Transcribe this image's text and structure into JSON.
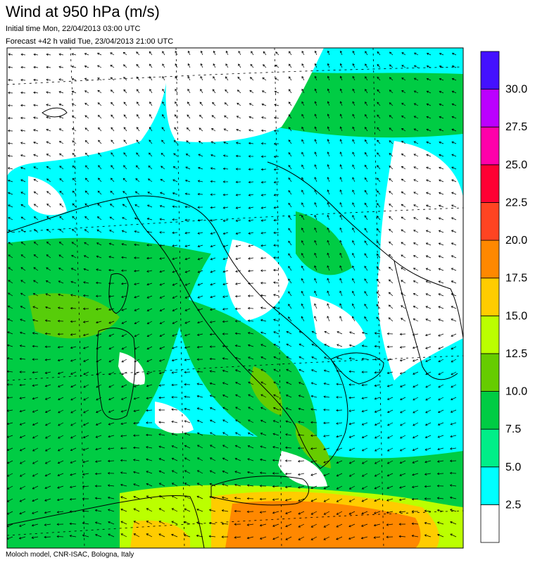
{
  "header": {
    "title": "Wind at 950 hPa (m/s)",
    "initial_time": "Initial time  Mon, 22/04/2013 03:00 UTC",
    "forecast_valid": "Forecast +42 h valid  Tue, 23/04/2013 21:00 UTC"
  },
  "footer": {
    "credit": "Moloch model, CNR-ISAC, Bologna, Italy"
  },
  "legend": {
    "unit": "m/s",
    "colors": [
      "#ffffff",
      "#00ffff",
      "#00ee88",
      "#00cc44",
      "#66cc00",
      "#bbff00",
      "#ffcc00",
      "#ff8800",
      "#ff4422",
      "#ff0033",
      "#ff00aa",
      "#bb00ff",
      "#4411ff"
    ],
    "labels": [
      "2.5",
      "5.0",
      "7.5",
      "10.0",
      "12.5",
      "15.0",
      "17.5",
      "20.0",
      "22.5",
      "25.0",
      "27.5",
      "30.0"
    ]
  },
  "map": {
    "field": "wind speed and direction at 950 hPa",
    "region": "Central Mediterranean / Italy",
    "coastline_color": "#000000",
    "arrow_color": "#000000",
    "graticule": "dashed"
  }
}
